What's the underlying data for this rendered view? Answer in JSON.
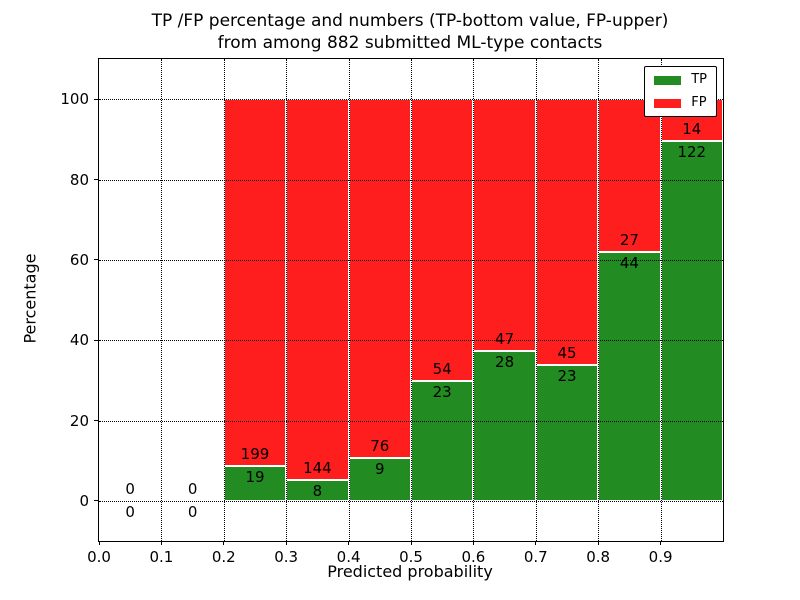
{
  "title_line1": "TP /FP percentage and numbers (TP-bottom value, FP-upper)",
  "title_line2": "from among 882 submitted ML-type contacts",
  "chart_data": {
    "type": "bar",
    "stacked": true,
    "percent_normalized_per_bin": true,
    "title": "TP /FP percentage and numbers (TP-bottom value, FP-upper) from among 882 submitted ML-type contacts",
    "xlabel": "Predicted probability",
    "ylabel": "Percentage",
    "xlim": [
      0.0,
      1.0
    ],
    "ylim": [
      -10,
      110
    ],
    "grid": "dotted",
    "legend_position": "upper right",
    "total_contacts": 882,
    "bin_width": 0.1,
    "bin_starts": [
      0.0,
      0.1,
      0.2,
      0.3,
      0.4,
      0.5,
      0.6,
      0.7,
      0.8,
      0.9
    ],
    "x_tick_labels": [
      "0.0",
      "0.1",
      "0.2",
      "0.3",
      "0.4",
      "0.5",
      "0.6",
      "0.7",
      "0.8",
      "0.9"
    ],
    "y_tick_values": [
      0,
      20,
      40,
      60,
      80,
      100
    ],
    "series": [
      {
        "name": "TP",
        "color": "#228b22",
        "counts": [
          0,
          0,
          19,
          8,
          9,
          23,
          28,
          23,
          44,
          122
        ]
      },
      {
        "name": "FP",
        "color": "#ff1e1e",
        "counts": [
          0,
          0,
          199,
          144,
          76,
          54,
          47,
          45,
          27,
          14
        ]
      }
    ]
  }
}
